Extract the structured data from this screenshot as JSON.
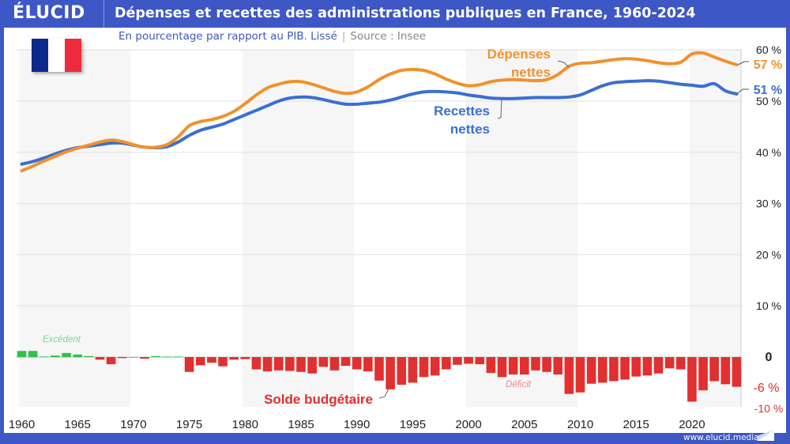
{
  "header": {
    "logo": "ÉLUCID",
    "title": "Dépenses et recettes des administrations publiques en France, 1960-2024"
  },
  "subtitle": {
    "text": "En pourcentage par rapport au PIB. Lissé",
    "source": "Source : Insee"
  },
  "footer": {
    "url": "www.elucid.media"
  },
  "colors": {
    "brand": "#3d57c4",
    "depenses": "#f0922e",
    "recettes": "#3b6fd1",
    "surplus": "#2fc24a",
    "deficit": "#e0302f",
    "flag": [
      "#0d2a8a",
      "#ffffff",
      "#ec2c3c"
    ]
  },
  "chart_data": [
    {
      "type": "line",
      "x": [
        1960,
        1961,
        1962,
        1963,
        1964,
        1965,
        1966,
        1967,
        1968,
        1969,
        1970,
        1971,
        1972,
        1973,
        1974,
        1975,
        1976,
        1977,
        1978,
        1979,
        1980,
        1981,
        1982,
        1983,
        1984,
        1985,
        1986,
        1987,
        1988,
        1989,
        1990,
        1991,
        1992,
        1993,
        1994,
        1995,
        1996,
        1997,
        1998,
        1999,
        2000,
        2001,
        2002,
        2003,
        2004,
        2005,
        2006,
        2007,
        2008,
        2009,
        2010,
        2011,
        2012,
        2013,
        2014,
        2015,
        2016,
        2017,
        2018,
        2019,
        2020,
        2021,
        2022,
        2023,
        2024
      ],
      "series": [
        {
          "name": "Dépenses nettes",
          "end_label": "57 %",
          "values": [
            36.4,
            37.3,
            38.3,
            39.2,
            40.1,
            40.8,
            41.4,
            42.0,
            42.4,
            42.1,
            41.5,
            41.0,
            41.0,
            41.5,
            43.0,
            45.2,
            46.0,
            46.4,
            47.0,
            48.0,
            49.5,
            51.2,
            52.6,
            53.3,
            53.8,
            53.8,
            53.3,
            52.6,
            51.9,
            51.5,
            51.8,
            52.8,
            54.2,
            55.3,
            56.0,
            56.2,
            56.0,
            55.3,
            54.3,
            53.5,
            53.0,
            53.2,
            53.8,
            54.1,
            54.2,
            54.1,
            54.0,
            54.2,
            55.2,
            56.8,
            57.4,
            57.5,
            57.8,
            58.1,
            58.3,
            58.2,
            57.9,
            57.5,
            57.3,
            57.6,
            59.2,
            59.4,
            58.6,
            57.8,
            57.1
          ]
        },
        {
          "name": "Recettes nettes",
          "end_label": "51 %",
          "values": [
            37.7,
            38.2,
            38.9,
            39.7,
            40.4,
            40.9,
            41.2,
            41.5,
            41.8,
            41.8,
            41.4,
            41.0,
            40.9,
            41.1,
            42.0,
            43.3,
            44.3,
            44.9,
            45.5,
            46.4,
            47.3,
            48.2,
            49.1,
            50.0,
            50.6,
            50.8,
            50.7,
            50.3,
            49.8,
            49.4,
            49.4,
            49.6,
            49.8,
            50.2,
            50.8,
            51.4,
            51.8,
            51.9,
            51.8,
            51.6,
            51.2,
            50.9,
            50.6,
            50.5,
            50.5,
            50.6,
            50.7,
            50.7,
            50.7,
            50.8,
            51.2,
            52.1,
            53.0,
            53.6,
            53.8,
            53.9,
            54.0,
            53.9,
            53.6,
            53.3,
            53.1,
            52.9,
            53.4,
            52.0,
            51.4
          ]
        }
      ],
      "ylim": [
        -10,
        60
      ],
      "grid": true
    },
    {
      "type": "bar",
      "name": "Solde budgétaire",
      "positive_label": "Excédent",
      "negative_label": "Déficit",
      "end_label": "-6 %",
      "values": [
        1.2,
        1.2,
        0.1,
        0.3,
        0.8,
        0.5,
        0.2,
        -0.5,
        -1.4,
        -0.2,
        0.0,
        -0.3,
        0.2,
        0.1,
        0.1,
        -2.9,
        -1.6,
        -1.1,
        -1.8,
        -0.5,
        -0.4,
        -2.4,
        -2.8,
        -2.6,
        -2.7,
        -2.9,
        -3.2,
        -1.9,
        -2.6,
        -1.7,
        -2.4,
        -2.8,
        -4.6,
        -6.3,
        -5.4,
        -5.0,
        -3.9,
        -3.6,
        -2.4,
        -1.5,
        -1.3,
        -1.4,
        -3.1,
        -3.9,
        -3.4,
        -3.4,
        -2.6,
        -2.9,
        -3.4,
        -7.2,
        -6.9,
        -5.2,
        -5.0,
        -4.7,
        -4.4,
        -3.8,
        -3.6,
        -3.2,
        -2.2,
        -2.4,
        -8.7,
        -6.5,
        -4.7,
        -5.3,
        -5.8
      ]
    }
  ],
  "axes": {
    "x_ticks": [
      "1960",
      "1965",
      "1970",
      "1975",
      "1980",
      "1985",
      "1990",
      "1995",
      "2000",
      "2005",
      "2010",
      "2015",
      "2020"
    ],
    "y_ticks": [
      {
        "v": 60,
        "label": "60 %"
      },
      {
        "v": 50,
        "label": "50 %"
      },
      {
        "v": 40,
        "label": "40 %"
      },
      {
        "v": 30,
        "label": "30 %"
      },
      {
        "v": 20,
        "label": "20 %"
      },
      {
        "v": 10,
        "label": "10 %"
      },
      {
        "v": 0,
        "label": "0"
      },
      {
        "v": -10,
        "label": "-10 %"
      }
    ]
  }
}
